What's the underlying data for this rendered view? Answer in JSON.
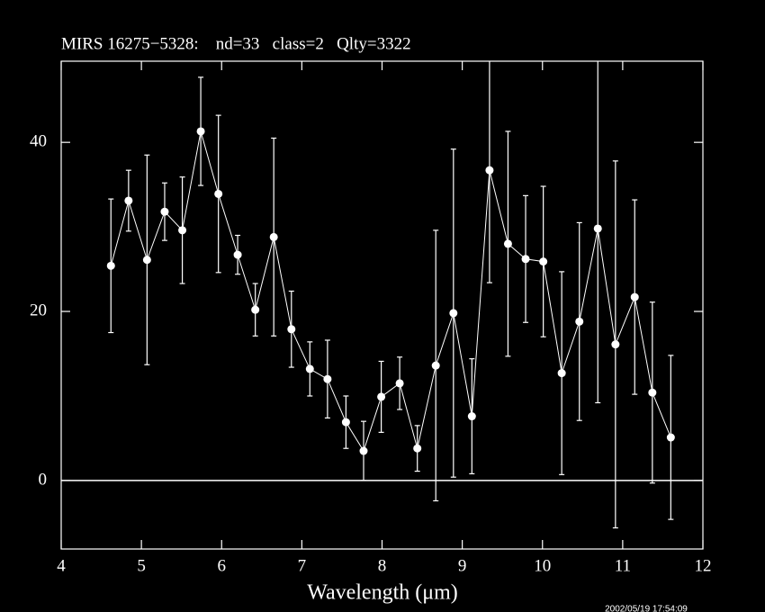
{
  "chart_data": {
    "type": "errorbar",
    "title": "MIRS 16275−5328:    nd=33   class=2   Qlty=3322",
    "x_label": "Wavelength (μm)",
    "timestamp": "2002/05/19 17:54:09",
    "xlim": [
      4,
      12
    ],
    "ylim": [
      -8.1,
      49.6
    ],
    "xticks": [
      4,
      5,
      6,
      7,
      8,
      9,
      10,
      11,
      12
    ],
    "yticks": [
      0,
      20,
      40
    ],
    "hline": 0,
    "color": "#ffffff",
    "x": [
      4.62,
      4.84,
      5.07,
      5.29,
      5.51,
      5.74,
      5.96,
      6.2,
      6.42,
      6.65,
      6.87,
      7.1,
      7.32,
      7.55,
      7.77,
      7.99,
      8.22,
      8.44,
      8.67,
      8.89,
      9.12,
      9.34,
      9.57,
      9.79,
      10.01,
      10.24,
      10.46,
      10.69,
      10.91,
      11.15,
      11.37,
      11.6
    ],
    "values": [
      25.4,
      33.1,
      26.1,
      31.8,
      29.6,
      41.3,
      33.9,
      26.7,
      20.2,
      28.8,
      17.9,
      13.2,
      12.0,
      6.9,
      3.5,
      9.9,
      11.5,
      3.8,
      13.6,
      19.8,
      7.6,
      36.7,
      28.0,
      26.2,
      25.9,
      12.7,
      18.8,
      29.8,
      16.1,
      21.7,
      10.4,
      5.1
    ],
    "errors": [
      7.9,
      3.6,
      12.4,
      3.4,
      6.3,
      6.4,
      9.3,
      2.3,
      3.1,
      11.7,
      4.5,
      3.2,
      4.6,
      3.1,
      3.5,
      4.2,
      3.1,
      2.7,
      16,
      19.4,
      6.8,
      13.3,
      13.3,
      7.5,
      8.9,
      12,
      11.7,
      20.6,
      21.7,
      11.5,
      10.7,
      9.7
    ]
  }
}
